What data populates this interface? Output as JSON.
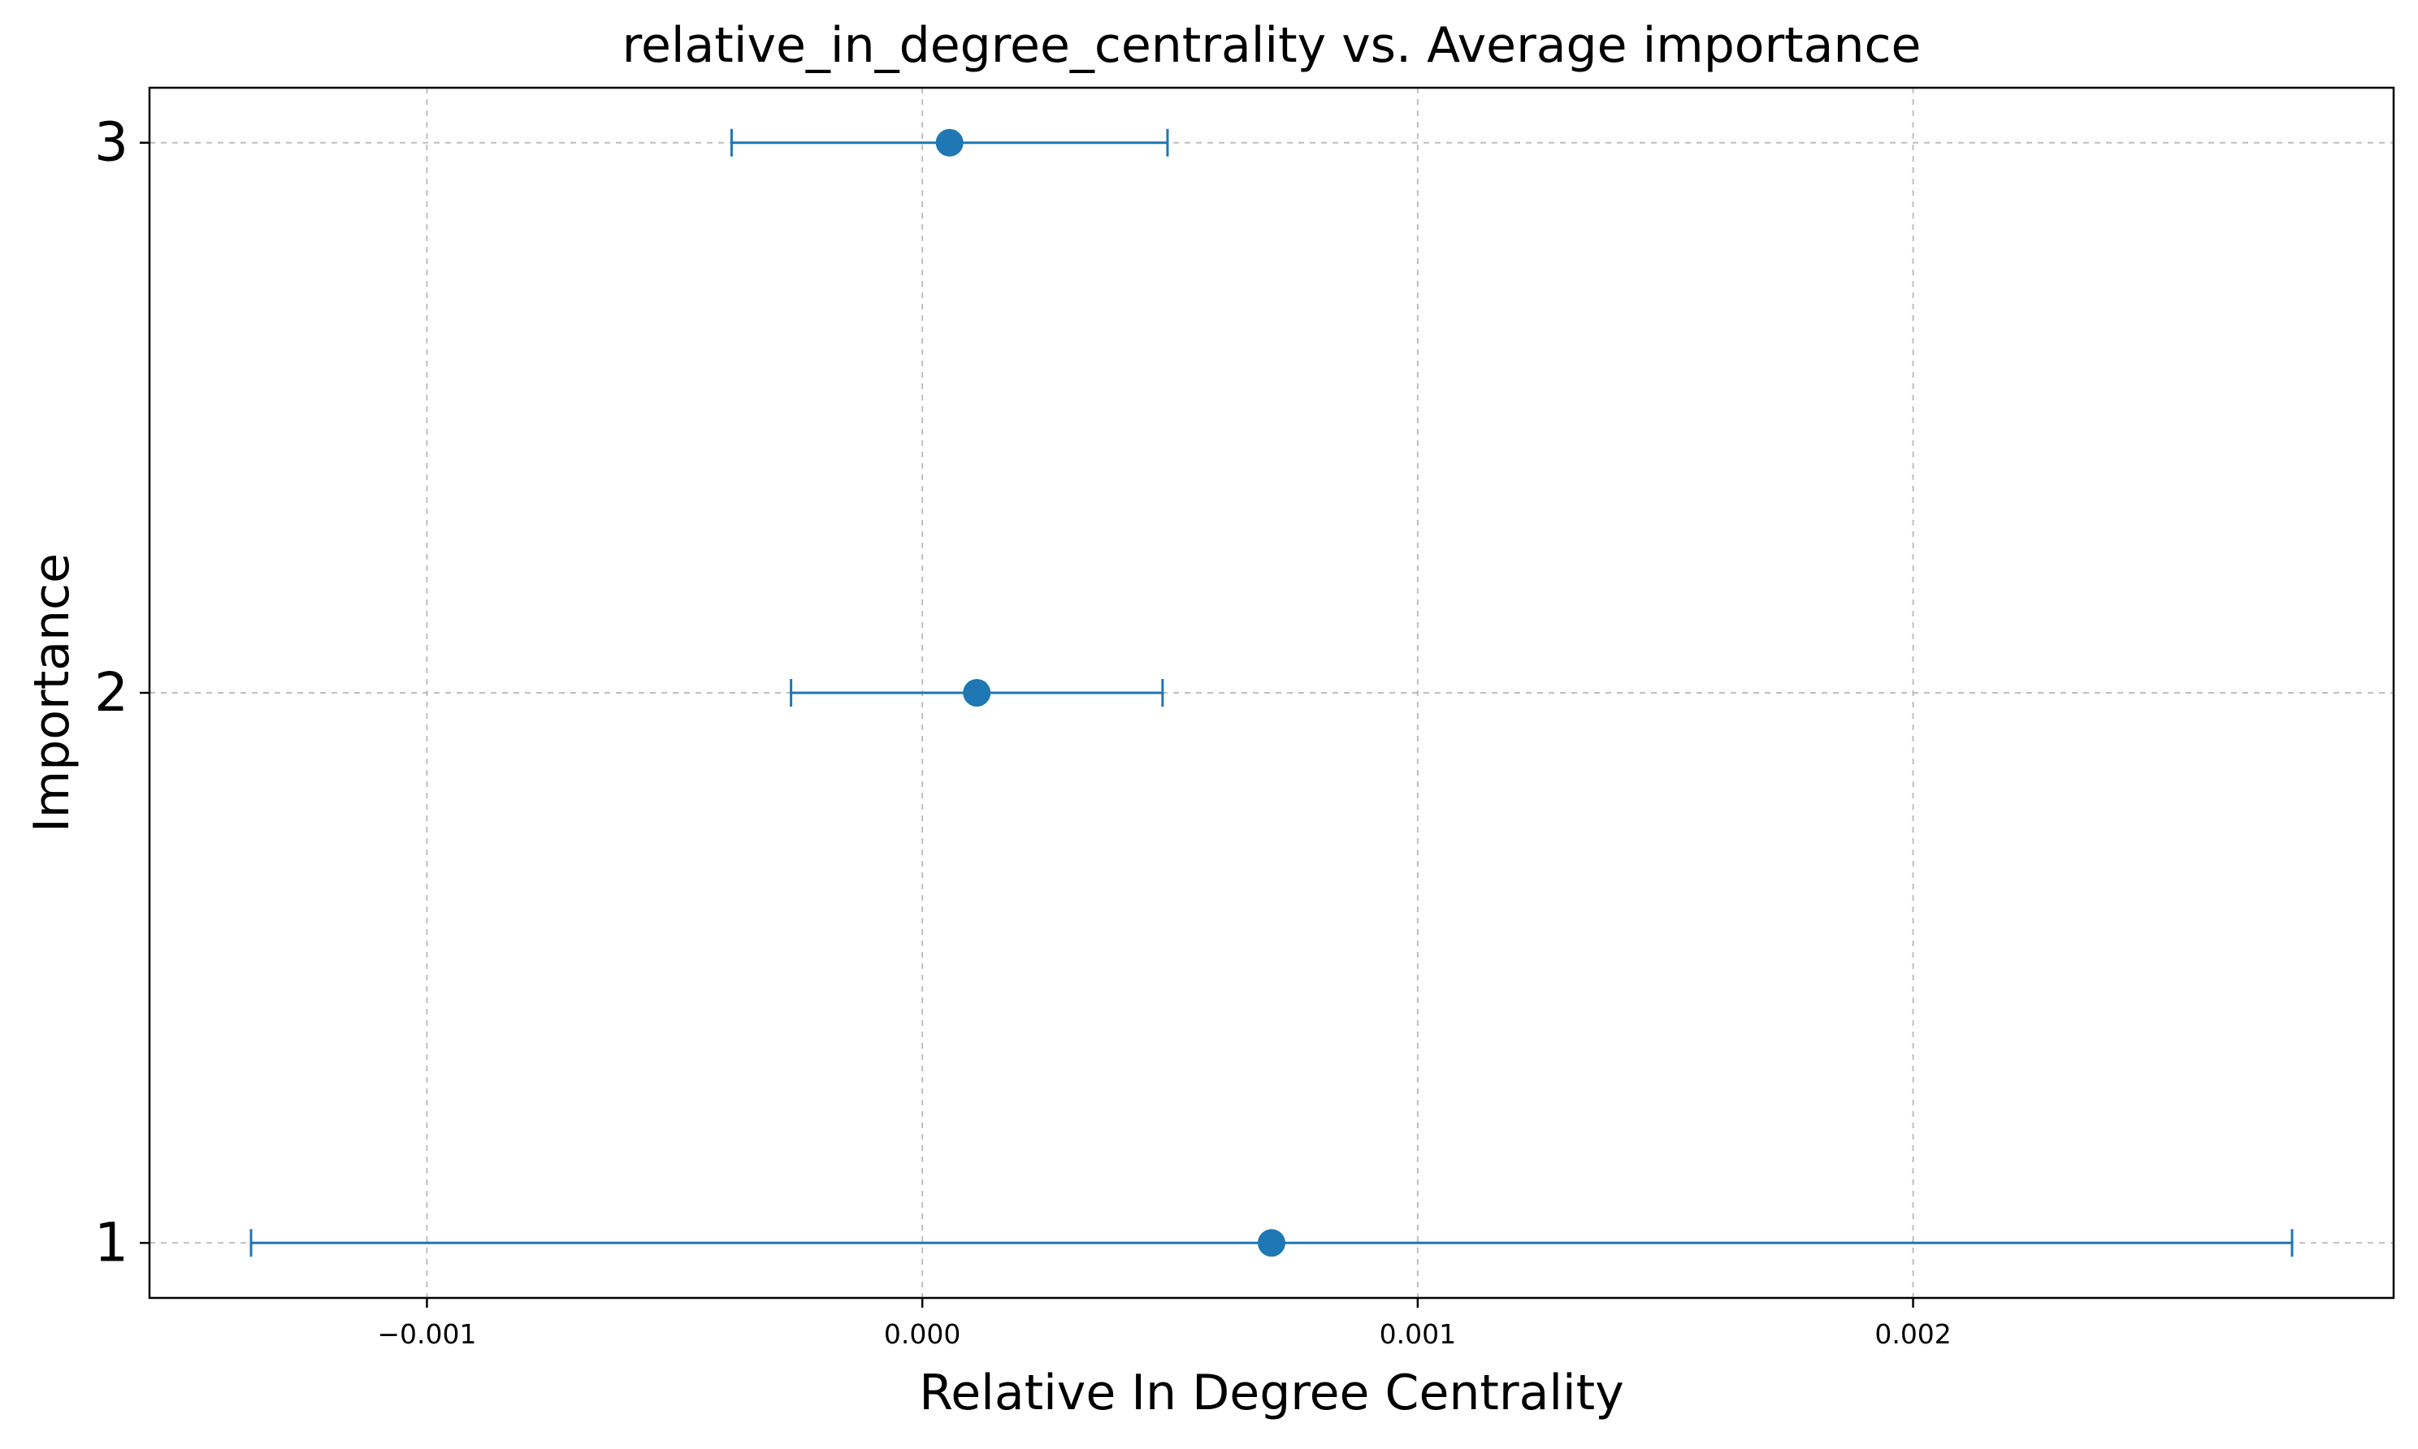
{
  "chart_data": {
    "type": "errorbar",
    "title": "relative_in_degree_centrality vs. Average importance",
    "xlabel": "Relative In Degree Centrality",
    "ylabel": "Importance",
    "xlim": [
      -0.00156,
      0.00297
    ],
    "ylim": [
      0.9,
      3.1
    ],
    "xticks": [
      -0.001,
      0.0,
      0.001,
      0.002
    ],
    "xtick_labels": [
      "−0.001",
      "0.000",
      "0.001",
      "0.002"
    ],
    "yticks": [
      1,
      2,
      3
    ],
    "ytick_labels": [
      "1",
      "2",
      "3"
    ],
    "grid": true,
    "grid_style": "dashed",
    "legend": false,
    "color": "#1f77b4",
    "points": [
      {
        "y": 1,
        "x": 0.000705,
        "xerr_low": -0.001355,
        "xerr_high": 0.002765
      },
      {
        "y": 2,
        "x": 0.00011,
        "xerr_low": -0.000265,
        "xerr_high": 0.000485
      },
      {
        "y": 3,
        "x": 5.5e-05,
        "xerr_low": -0.000385,
        "xerr_high": 0.000495
      }
    ]
  }
}
